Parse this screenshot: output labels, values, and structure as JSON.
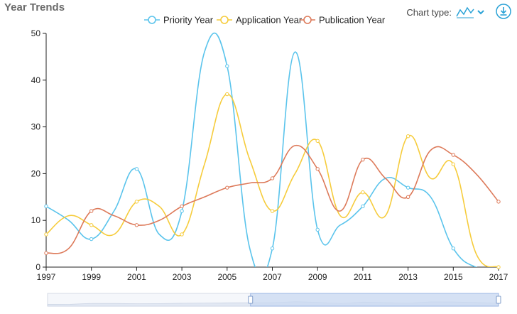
{
  "panel": {
    "title": "Year Trends",
    "chart_type_label": "Chart type:",
    "chart_type_icon": "line-chart-icon",
    "download_icon": "download-icon"
  },
  "colors": {
    "priority": "#5bc4ec",
    "application": "#f6cc3c",
    "publication": "#dd7a5a",
    "accent": "#2aa2d6",
    "zoom_fill": "#c9d9f2",
    "zoom_border": "#9bb6e3"
  },
  "chart_data": {
    "type": "line",
    "x": [
      1997,
      1998,
      1999,
      2000,
      2001,
      2002,
      2003,
      2004,
      2005,
      2006,
      2007,
      2008,
      2009,
      2010,
      2011,
      2012,
      2013,
      2014,
      2015,
      2016,
      2017
    ],
    "x_ticks": [
      1997,
      1999,
      2001,
      2003,
      2005,
      2007,
      2009,
      2011,
      2013,
      2015,
      2017
    ],
    "ylim": [
      0,
      50
    ],
    "y_ticks": [
      0,
      10,
      20,
      30,
      40,
      50
    ],
    "xlabel": "",
    "ylabel": "",
    "series": [
      {
        "name": "Priority Year",
        "key": "priority",
        "values": [
          13,
          10,
          6,
          12,
          21,
          7,
          12,
          46,
          43,
          4,
          4,
          46,
          8,
          9,
          13,
          19,
          17,
          15,
          4,
          0,
          0
        ]
      },
      {
        "name": "Application Year",
        "key": "application",
        "values": [
          7,
          11,
          9,
          7,
          14,
          13,
          7,
          22,
          37,
          23,
          12,
          20,
          27,
          11,
          16,
          11,
          28,
          19,
          22,
          3,
          0
        ]
      },
      {
        "name": "Publication Year",
        "key": "publication",
        "values": [
          3,
          4,
          12,
          11,
          9,
          10,
          13,
          15,
          17,
          18,
          19,
          26,
          21,
          12,
          23,
          19,
          15,
          25,
          24,
          20,
          14
        ]
      }
    ],
    "marked_points": {
      "priority": [
        1997,
        1999,
        2001,
        2003,
        2005,
        2007,
        2009,
        2011,
        2013,
        2015
      ],
      "application": [
        1997,
        1999,
        2001,
        2003,
        2005,
        2007,
        2009,
        2011,
        2013,
        2015,
        2017
      ],
      "publication": [
        1997,
        1999,
        2001,
        2003,
        2005,
        2007,
        2009,
        2011,
        2013,
        2015,
        2017
      ]
    },
    "legend_position": "top-center",
    "zoom_window": {
      "start": 0.45,
      "end": 1.0
    }
  }
}
